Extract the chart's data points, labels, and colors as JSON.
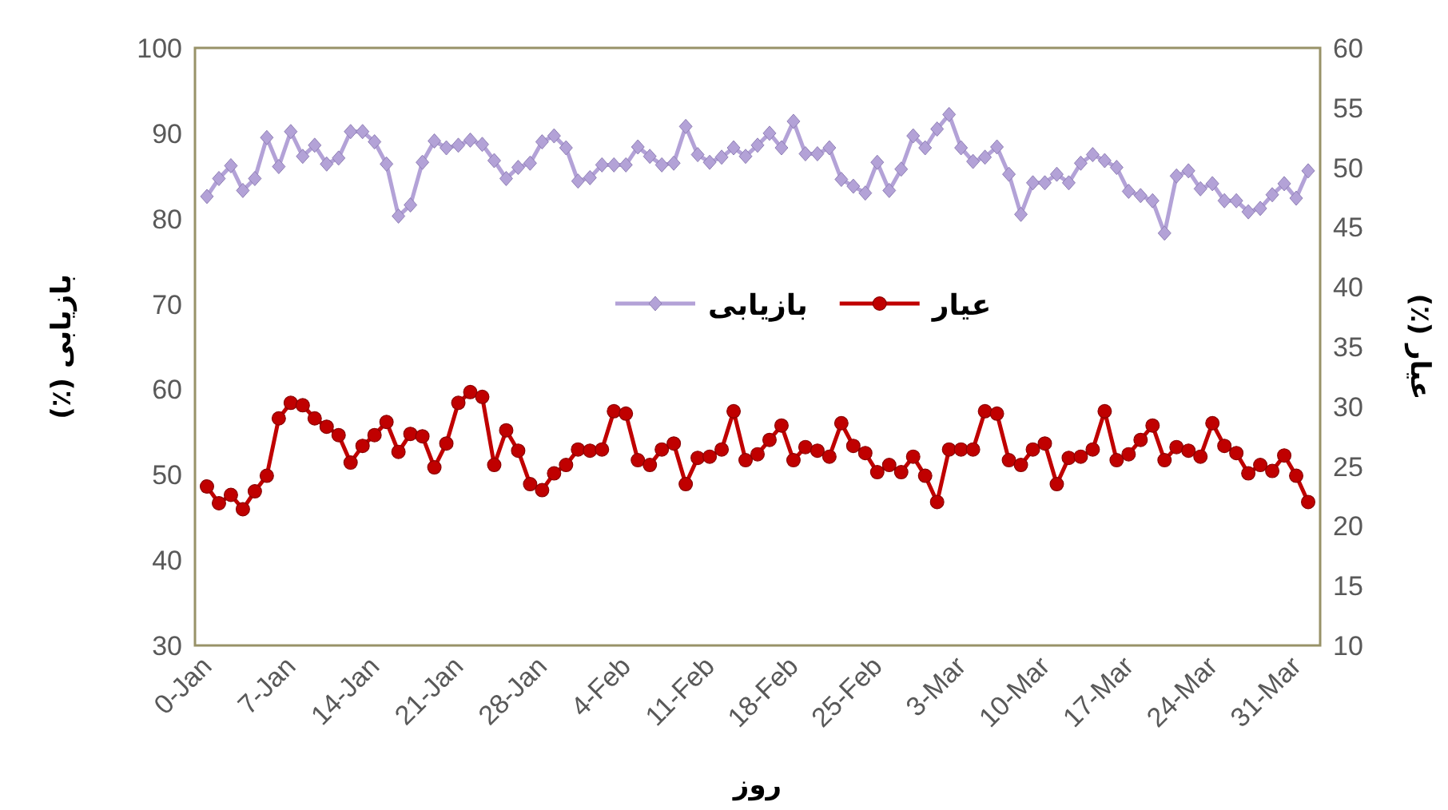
{
  "chart_data": {
    "type": "line",
    "xlabel": "روز",
    "ylabel": "بازیابی (٪)",
    "y2label": "عیار (٪)",
    "categories": [
      "0-Jan",
      null,
      null,
      null,
      null,
      null,
      null,
      "7-Jan",
      null,
      null,
      null,
      null,
      null,
      null,
      "14-Jan",
      null,
      null,
      null,
      null,
      null,
      null,
      "21-Jan",
      null,
      null,
      null,
      null,
      null,
      null,
      "28-Jan",
      null,
      null,
      null,
      null,
      null,
      null,
      "4-Feb",
      null,
      null,
      null,
      null,
      null,
      null,
      "11-Feb",
      null,
      null,
      null,
      null,
      null,
      null,
      "18-Feb",
      null,
      null,
      null,
      null,
      null,
      null,
      "25-Feb",
      null,
      null,
      null,
      null,
      null,
      null,
      "3-Mar",
      null,
      null,
      null,
      null,
      null,
      null,
      "10-Mar",
      null,
      null,
      null,
      null,
      null,
      null,
      "17-Mar",
      null,
      null,
      null,
      null,
      null,
      null,
      "24-Mar",
      null,
      null,
      null,
      null,
      null,
      null,
      "31-Mar",
      null
    ],
    "series": [
      {
        "name": "بازیابی",
        "color": "#b3a2d7",
        "marker": "diamond",
        "values": [
          82.6,
          84.7,
          86.2,
          83.3,
          84.7,
          89.5,
          86.1,
          90.2,
          87.3,
          88.6,
          86.4,
          87.1,
          90.2,
          90.2,
          89.0,
          86.4,
          80.3,
          81.6,
          86.6,
          89.1,
          88.3,
          88.6,
          89.2,
          88.7,
          86.8,
          84.7,
          86.0,
          86.5,
          89.0,
          89.7,
          88.3,
          84.4,
          84.8,
          86.3,
          86.3,
          86.3,
          88.4,
          87.3,
          86.3,
          86.5,
          90.8,
          87.5,
          86.6,
          87.2,
          88.3,
          87.3,
          88.6,
          90.0,
          88.3,
          91.4,
          87.6,
          87.6,
          88.3,
          84.6,
          83.8,
          83.0,
          86.6,
          83.3,
          85.8,
          89.7,
          88.3,
          90.5,
          92.2,
          88.3,
          86.7,
          87.2,
          88.4,
          85.2,
          80.5,
          84.2,
          84.2,
          85.2,
          84.2,
          86.5,
          87.5,
          86.8,
          86.0,
          83.2,
          82.7,
          82.1,
          78.3,
          85.0,
          85.6,
          83.5,
          84.1,
          82.1,
          82.1,
          80.8,
          81.2,
          82.8,
          84.1,
          82.4,
          85.6
        ]
      },
      {
        "name": "عیار",
        "color": "#c00000",
        "marker": "circle",
        "axis": "y2",
        "values": [
          23.3,
          21.9,
          22.6,
          21.4,
          22.9,
          24.2,
          29.0,
          30.3,
          30.1,
          29.0,
          28.3,
          27.6,
          25.3,
          26.7,
          27.6,
          28.7,
          26.2,
          27.7,
          27.5,
          24.9,
          26.9,
          30.3,
          31.2,
          30.8,
          25.1,
          28.0,
          26.3,
          23.5,
          23.0,
          24.4,
          25.1,
          26.4,
          26.3,
          26.4,
          29.6,
          29.4,
          25.5,
          25.1,
          26.4,
          26.9,
          23.5,
          25.7,
          25.8,
          26.4,
          29.6,
          25.5,
          26.0,
          27.2,
          28.4,
          25.5,
          26.6,
          26.3,
          25.8,
          28.6,
          26.7,
          26.1,
          24.5,
          25.1,
          24.5,
          25.8,
          24.2,
          22.0,
          26.4,
          26.4,
          26.4,
          29.6,
          29.4,
          25.5,
          25.1,
          26.4,
          26.9,
          23.5,
          25.7,
          25.8,
          26.4,
          29.6,
          25.5,
          26.0,
          27.2,
          28.4,
          25.5,
          26.6,
          26.3,
          25.8,
          28.6,
          26.7,
          26.1,
          24.4,
          25.1,
          24.6,
          25.9,
          24.2,
          22.0
        ]
      }
    ],
    "ylim": [
      30,
      100
    ],
    "yticks": [
      30,
      40,
      50,
      60,
      70,
      80,
      90,
      100
    ],
    "y2lim": [
      10,
      60
    ],
    "y2ticks": [
      10,
      15,
      20,
      25,
      30,
      35,
      40,
      45,
      50,
      55,
      60
    ],
    "grid": false,
    "legend": "center"
  }
}
